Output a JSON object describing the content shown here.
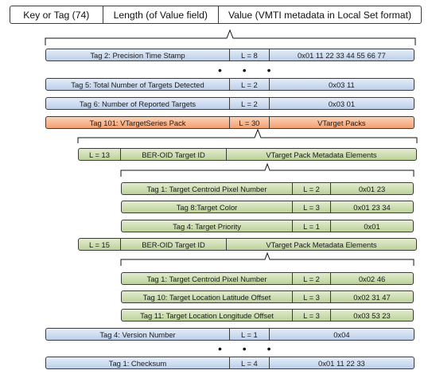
{
  "header": {
    "key": "Key or Tag (74)",
    "length": "Length (of Value field)",
    "value": "Value (VMTI metadata in Local Set format)"
  },
  "rows": {
    "tag2": {
      "tag": "Tag 2: Precision Time Stamp",
      "len": "L = 8",
      "val": "0x01 11 22 33 44 55 66 77"
    },
    "tag5": {
      "tag": "Tag 5: Total Number of Targets Detected",
      "len": "L = 2",
      "val": "0x03 11"
    },
    "tag6": {
      "tag": "Tag 6: Number of Reported Targets",
      "len": "L = 2",
      "val": "0x03 01"
    },
    "tag101": {
      "tag": "Tag 101: VTargetSeries Pack",
      "len": "L = 30",
      "val": "VTarget Packs"
    },
    "pack1": {
      "len": "L = 13",
      "id": "BER-OID Target ID",
      "val": "VTarget Pack Metadata Elements"
    },
    "p1t1": {
      "tag": "Tag 1: Target Centroid Pixel Number",
      "len": "L = 2",
      "val": "0x01 23"
    },
    "p1t8": {
      "tag": "Tag 8:Target Color",
      "len": "L = 3",
      "val": "0x01 23 34"
    },
    "p1t4": {
      "tag": "Tag 4: Target Priority",
      "len": "L = 1",
      "val": "0x01"
    },
    "pack2": {
      "len": "L = 15",
      "id": "BER-OID Target ID",
      "val": "VTarget Pack Metadata Elements"
    },
    "p2t1": {
      "tag": "Tag 1: Target Centroid Pixel Number",
      "len": "L = 2",
      "val": "0x02 46"
    },
    "p2t10": {
      "tag": "Tag 10: Target Location Latitude Offset",
      "len": "L = 3",
      "val": "0x02 31 47"
    },
    "p2t11": {
      "tag": "Tag 11: Target Location Longitude Offset",
      "len": "L = 3",
      "val": "0x03 53 23"
    },
    "tag4": {
      "tag": "Tag 4: Version Number",
      "len": "L = 1",
      "val": "0x04"
    },
    "tag1": {
      "tag": "Tag 1: Checksum",
      "len": "L = 4",
      "val": "0x01 11 22 33"
    }
  },
  "ellipsis": "• • •",
  "colors": {
    "blue": "#bccfea",
    "green": "#bcd19a",
    "orange": "#f3a072",
    "border": "#3b3b3b"
  }
}
